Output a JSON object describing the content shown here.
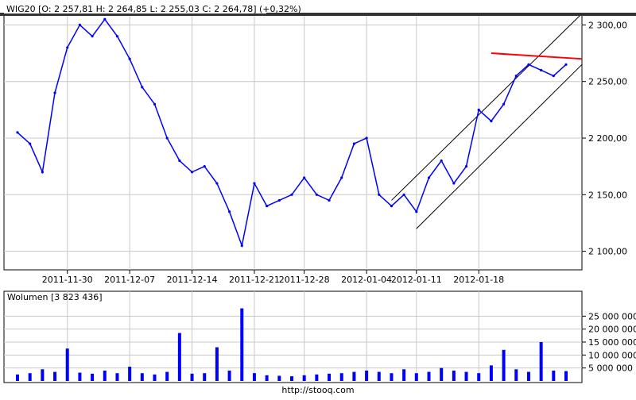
{
  "chart_data": [
    {
      "type": "line",
      "title": "WIG20 [O: 2 257,81  H: 2 264,85  L: 2 255,03  C: 2 264,78] (+0,32%)",
      "xlabel": "",
      "ylabel": "",
      "x": [
        "2011-11-24",
        "2011-11-25",
        "2011-11-28",
        "2011-11-29",
        "2011-11-30",
        "2011-12-01",
        "2011-12-02",
        "2011-12-05",
        "2011-12-06",
        "2011-12-07",
        "2011-12-08",
        "2011-12-09",
        "2011-12-12",
        "2011-12-13",
        "2011-12-14",
        "2011-12-15",
        "2011-12-16",
        "2011-12-19",
        "2011-12-20",
        "2011-12-21",
        "2011-12-22",
        "2011-12-23",
        "2011-12-27",
        "2011-12-28",
        "2011-12-29",
        "2011-12-30",
        "2012-01-02",
        "2012-01-03",
        "2012-01-04",
        "2012-01-05",
        "2012-01-09",
        "2012-01-10",
        "2012-01-11",
        "2012-01-12",
        "2012-01-13",
        "2012-01-16",
        "2012-01-17",
        "2012-01-18",
        "2012-01-19",
        "2012-01-20",
        "2012-01-23",
        "2012-01-24",
        "2012-01-25",
        "2012-01-26",
        "2012-01-27"
      ],
      "series": [
        {
          "values": [
            2205,
            2195,
            2170,
            2240,
            2280,
            2300,
            2290,
            2305,
            2290,
            2270,
            2245,
            2230,
            2200,
            2180,
            2170,
            2175,
            2160,
            2135,
            2105,
            2160,
            2140,
            2145,
            2150,
            2165,
            2150,
            2145,
            2165,
            2195,
            2200,
            2150,
            2140,
            2150,
            2135,
            2165,
            2180,
            2160,
            2175,
            2225,
            2215,
            2230,
            2255,
            2265,
            2260,
            2255,
            2265
          ],
          "color": "#0000ff"
        }
      ],
      "ylim": [
        2085,
        2308
      ],
      "yticks": [
        "2 300,00",
        "2 250,00",
        "2 200,00",
        "2 150,00",
        "2 100,00"
      ],
      "ytick_values": [
        2300,
        2250,
        2200,
        2150,
        2100
      ],
      "xtick_labels": [
        "2011-11-30",
        "2011-12-07",
        "2011-12-14",
        "2011-12-21",
        "2011-12-28",
        "2012-01-04",
        "2012-01-11",
        "2012-01-18"
      ],
      "trendlines": [
        {
          "kind": "channel-upper",
          "from": [
            "2012-01-09",
            2145
          ],
          "to": [
            "2012-01-27",
            2310
          ],
          "color": "#000000"
        },
        {
          "kind": "channel-lower",
          "from": [
            "2012-01-11",
            2120
          ],
          "to": [
            "2012-01-27",
            2265
          ],
          "color": "#000000"
        },
        {
          "kind": "resistance",
          "from": [
            "2012-01-19",
            2275
          ],
          "to": [
            "2012-01-27",
            2270
          ],
          "color": "#ff0000"
        }
      ],
      "grid": true
    },
    {
      "type": "bar",
      "title": "Wolumen [3 823 436]",
      "x": [
        "2011-11-24",
        "2011-11-25",
        "2011-11-28",
        "2011-11-29",
        "2011-11-30",
        "2011-12-01",
        "2011-12-02",
        "2011-12-05",
        "2011-12-06",
        "2011-12-07",
        "2011-12-08",
        "2011-12-09",
        "2011-12-12",
        "2011-12-13",
        "2011-12-14",
        "2011-12-15",
        "2011-12-16",
        "2011-12-19",
        "2011-12-20",
        "2011-12-21",
        "2011-12-22",
        "2011-12-23",
        "2011-12-27",
        "2011-12-28",
        "2011-12-29",
        "2011-12-30",
        "2012-01-02",
        "2012-01-03",
        "2012-01-04",
        "2012-01-05",
        "2012-01-09",
        "2012-01-10",
        "2012-01-11",
        "2012-01-12",
        "2012-01-13",
        "2012-01-16",
        "2012-01-17",
        "2012-01-18",
        "2012-01-19",
        "2012-01-20",
        "2012-01-23",
        "2012-01-24",
        "2012-01-25",
        "2012-01-26",
        "2012-01-27"
      ],
      "values": [
        2500000,
        3000000,
        4500000,
        3500000,
        12500000,
        3200000,
        2800000,
        4000000,
        3000000,
        5500000,
        3000000,
        2500000,
        3500000,
        18500000,
        2800000,
        3000000,
        13000000,
        4000000,
        28000000,
        3000000,
        2200000,
        2000000,
        1800000,
        2200000,
        2500000,
        2800000,
        3000000,
        3500000,
        4000000,
        3500000,
        3000000,
        4500000,
        3000000,
        3500000,
        5000000,
        4000000,
        3500000,
        3000000,
        6000000,
        12000000,
        4500000,
        3500000,
        15000000,
        4000000,
        3800000
      ],
      "ylim": [
        0,
        30000000
      ],
      "yticks": [
        "25 000 000",
        "20 000 000",
        "15 000 000",
        "10 000 000",
        "5 000 000"
      ],
      "ytick_values": [
        25000000,
        20000000,
        15000000,
        10000000,
        5000000
      ],
      "color": "#0000ff",
      "grid": true
    }
  ],
  "footer": {
    "url": "http://stooq.com"
  },
  "colors": {
    "price": "#0000ff",
    "volume": "#0000ff",
    "channel": "#000000",
    "resistance": "#ff0000",
    "grid": "#c8c8c8"
  }
}
